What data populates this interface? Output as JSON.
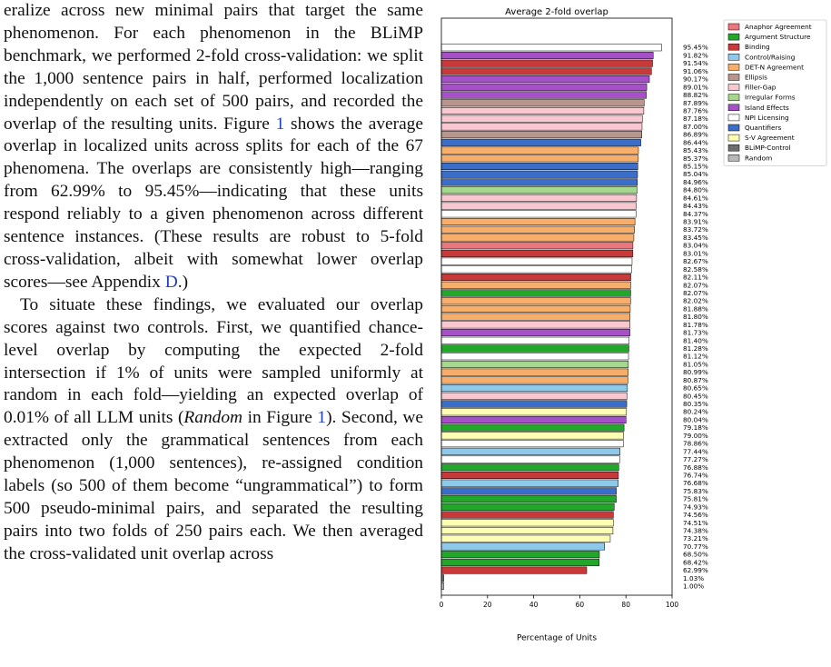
{
  "paragraphs": [
    [
      "eralize across new minimal pairs that target the same phenomenon. For each phenomenon in the BLiMP benchmark, we performed 2-fold cross-validation: we split the 1,000 sentence pairs in half, performed localization independently on each set of 500 pairs, and recorded the overlap of the resulting units. Figure ",
      "1",
      " shows the average overlap in localized units across splits for each of the 67 phenomena. The overlaps are consistently high—ranging from 62.99% to 95.45%—indicating that these units respond reliably to a given phenomenon across different sentence instances. (These results are robust to 5-fold cross-validation, albeit with somewhat lower overlap scores—see Appendix ",
      "D",
      ".)"
    ],
    [
      "To situate these findings, we evaluated our overlap scores against two controls. First, we quantified chance-level overlap by computing the expected 2-fold intersection if 1% of units were sampled uniformly at random in each fold—yielding an expected overlap of 0.01% of all LLM units (",
      "Random",
      " in Figure ",
      "1",
      "). Second, we extracted only the grammatical sentences from each phenomenon (1,000 sentences), re-assigned condition labels (so 500 of them become “ungrammatical”) to form 500 pseudo-minimal pairs, and separated the resulting pairs into two folds of 250 pairs each. We then averaged the cross-validated unit overlap across"
    ]
  ],
  "chart": {
    "type": "barh",
    "title": "Average 2-fold overlap",
    "xlabel": "Percentage of Units",
    "xlim": [
      0,
      100
    ],
    "xticks": [
      0,
      20,
      40,
      60,
      80,
      100
    ],
    "legend": [
      {
        "name": "Anaphor Agreement",
        "color": "#e8787e"
      },
      {
        "name": "Argument Structure",
        "color": "#22a72a"
      },
      {
        "name": "Binding",
        "color": "#c83a3a"
      },
      {
        "name": "Control/Raising",
        "color": "#8ec9ea"
      },
      {
        "name": "DET-N Agreement",
        "color": "#f7ae6a"
      },
      {
        "name": "Ellipsis",
        "color": "#b8958d"
      },
      {
        "name": "Filler-Gap",
        "color": "#f9c7cf"
      },
      {
        "name": "Irregular Forms",
        "color": "#a5d88e"
      },
      {
        "name": "Island Effects",
        "color": "#a650c8"
      },
      {
        "name": "NPI Licensing",
        "color": "#ffffff"
      },
      {
        "name": "Quantifiers",
        "color": "#3a6ec8"
      },
      {
        "name": "S-V Agreement",
        "color": "#fdfdb4"
      },
      {
        "name": "BLiMP-Control",
        "color": "#6e6e6e"
      },
      {
        "name": "Random",
        "color": "#b8b8b8"
      }
    ],
    "values": [
      95.45,
      91.82,
      91.54,
      91.06,
      90.17,
      89.01,
      88.82,
      87.89,
      87.76,
      87.18,
      87.0,
      86.89,
      86.44,
      85.43,
      85.37,
      85.15,
      85.04,
      84.96,
      84.8,
      84.61,
      84.43,
      84.37,
      83.91,
      83.72,
      83.45,
      83.04,
      83.01,
      82.67,
      82.58,
      82.11,
      82.07,
      82.07,
      82.02,
      81.88,
      81.8,
      81.78,
      81.73,
      81.4,
      81.28,
      81.12,
      81.05,
      80.99,
      80.87,
      80.65,
      80.45,
      80.35,
      80.24,
      80.04,
      79.18,
      79.0,
      78.86,
      77.44,
      77.27,
      76.88,
      76.74,
      76.68,
      75.83,
      75.81,
      74.93,
      74.56,
      74.51,
      74.38,
      73.21,
      70.77,
      68.5,
      68.42,
      62.99,
      1.03,
      1.0
    ],
    "value_labels": [
      "95.45%",
      "91.82%",
      "91.54%",
      "91.06%",
      "90.17%",
      "89.01%",
      "88.82%",
      "87.89%",
      "87.76%",
      "87.18%",
      "87.00%",
      "86.89%",
      "86.44%",
      "85.43%",
      "85.37%",
      "85.15%",
      "85.04%",
      "84.96%",
      "84.80%",
      "84.61%",
      "84.43%",
      "84.37%",
      "83.91%",
      "83.72%",
      "83.45%",
      "83.04%",
      "83.01%",
      "82.67%",
      "82.58%",
      "82.11%",
      "82.07%",
      "82.07%",
      "82.02%",
      "81.88%",
      "81.80%",
      "81.78%",
      "81.73%",
      "81.40%",
      "81.28%",
      "81.12%",
      "81.05%",
      "80.99%",
      "80.87%",
      "80.65%",
      "80.45%",
      "80.35%",
      "80.24%",
      "80.04%",
      "79.18%",
      "79.00%",
      "78.86%",
      "77.44%",
      "77.27%",
      "76.88%",
      "76.74%",
      "76.68%",
      "75.83%",
      "75.81%",
      "74.93%",
      "74.56%",
      "74.51%",
      "74.38%",
      "73.21%",
      "70.77%",
      "68.50%",
      "68.42%",
      "62.99%",
      "1.03%",
      "1.00%"
    ],
    "colors": [
      "#ffffff",
      "#a650c8",
      "#c83a3a",
      "#c83a3a",
      "#a650c8",
      "#a650c8",
      "#a650c8",
      "#b8958d",
      "#f9c7cf",
      "#f9c7cf",
      "#f9c7cf",
      "#b8958d",
      "#3a6ec8",
      "#f7ae6a",
      "#f7ae6a",
      "#3a6ec8",
      "#3a6ec8",
      "#3a6ec8",
      "#a5d88e",
      "#f9c7cf",
      "#f9c7cf",
      "#ffffff",
      "#f7ae6a",
      "#f7ae6a",
      "#f7ae6a",
      "#e8787e",
      "#c83a3a",
      "#ffffff",
      "#ffffff",
      "#c83a3a",
      "#f7ae6a",
      "#22a72a",
      "#f7ae6a",
      "#f7ae6a",
      "#f7ae6a",
      "#f9c7cf",
      "#a650c8",
      "#ffffff",
      "#22a72a",
      "#ffffff",
      "#a5d88e",
      "#f7ae6a",
      "#f7ae6a",
      "#8ec9ea",
      "#f9c7cf",
      "#3a6ec8",
      "#fdfdb4",
      "#a650c8",
      "#22a72a",
      "#fdfdb4",
      "#ffffff",
      "#8ec9ea",
      "#ffffff",
      "#22a72a",
      "#c83a3a",
      "#8ec9ea",
      "#3a6ec8",
      "#22a72a",
      "#22a72a",
      "#c83a3a",
      "#fdfdb4",
      "#fdfdb4",
      "#fdfdb4",
      "#8ec9ea",
      "#22a72a",
      "#22a72a",
      "#c83a3a",
      "#6e6e6e",
      "#b8b8b8"
    ]
  }
}
